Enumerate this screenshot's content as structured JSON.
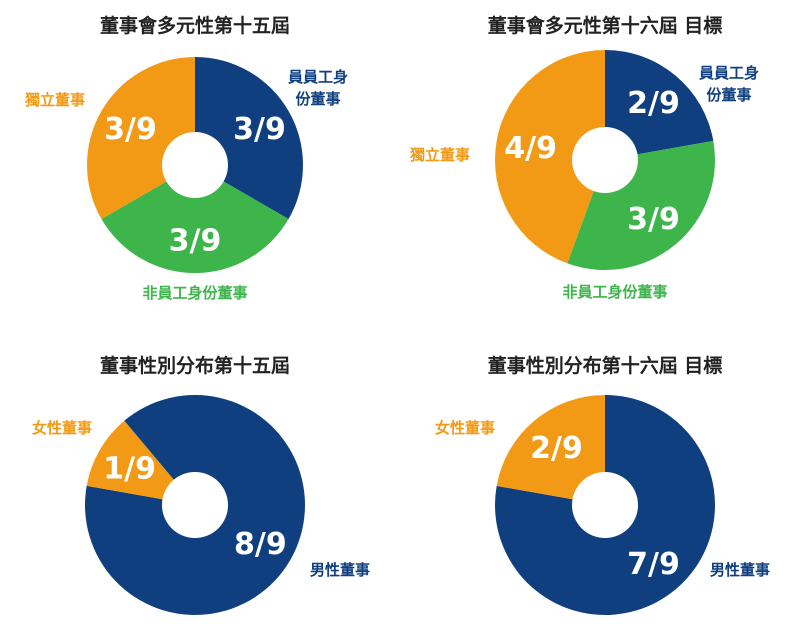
{
  "chart_data": [
    {
      "type": "pie",
      "title": "董事會多元性第十五屆",
      "categories": [
        "員員工身份董事",
        "非員工身份董事",
        "獨立董事"
      ],
      "values": [
        3,
        3,
        3
      ],
      "value_labels": [
        "3/9",
        "3/9",
        "3/9"
      ],
      "colors": [
        "#0F3F7F",
        "#3DB54A",
        "#F29A16"
      ],
      "start_angle_deg": 0
    },
    {
      "type": "pie",
      "title": "董事會多元性第十六屆 目標",
      "categories": [
        "員員工身份董事",
        "非員工身份董事",
        "獨立董事"
      ],
      "values": [
        2,
        3,
        4
      ],
      "value_labels": [
        "2/9",
        "3/9",
        "4/9"
      ],
      "colors": [
        "#0F3F7F",
        "#3DB54A",
        "#F29A16"
      ],
      "start_angle_deg": 0
    },
    {
      "type": "pie",
      "title": "董事性別分布第十五屆",
      "categories": [
        "男性董事",
        "女性董事"
      ],
      "values": [
        8,
        1
      ],
      "value_labels": [
        "8/9",
        "1/9"
      ],
      "colors": [
        "#0F3F7F",
        "#F29A16"
      ],
      "start_angle_deg": -40
    },
    {
      "type": "pie",
      "title": "董事性別分布第十六屆 目標",
      "categories": [
        "男性董事",
        "女性董事"
      ],
      "values": [
        7,
        2
      ],
      "value_labels": [
        "7/9",
        "2/9"
      ],
      "colors": [
        "#0F3F7F",
        "#F29A16"
      ],
      "start_angle_deg": 0
    }
  ]
}
